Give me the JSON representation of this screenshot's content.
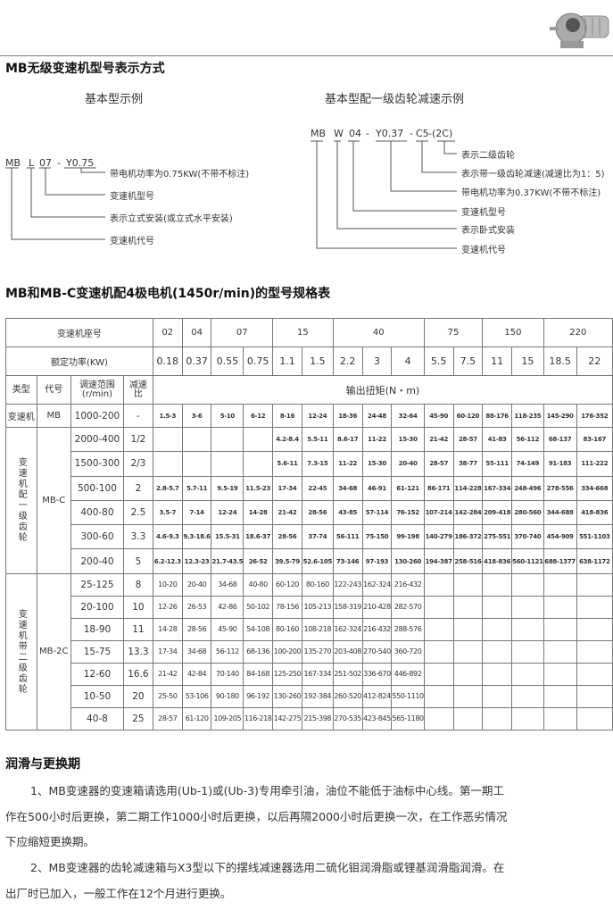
{
  "section1": {
    "title": "MB无级变速机型号表示方式",
    "left": {
      "subtitle": "基本型示例",
      "code": [
        "MB",
        "L",
        "07",
        "-",
        "Y0.75"
      ],
      "labels": [
        "带电机功率为0.75KW(不带不标注)",
        "变速机型号",
        "表示立式安装(或立式水平安装)",
        "变速机代号"
      ]
    },
    "right": {
      "subtitle": "基本型配一级齿轮减速示例",
      "code": [
        "MB",
        "W",
        "04",
        "-",
        "Y0.37",
        "-",
        "C5",
        "-(2C)"
      ],
      "labels": [
        "表示二级齿轮",
        "表示带一级齿轮减速(减速比为1：5)",
        "带电机功率为0.37KW(不带不标注)",
        "变速机型号",
        "表示卧式安装",
        "变速机代号"
      ]
    }
  },
  "table_title": "MB和MB-C变速机配4极电机(1450r/min)的型号规格表",
  "table": {
    "frame_label": "变速机座号",
    "frames": [
      {
        "n": "02",
        "span": 1
      },
      {
        "n": "04",
        "span": 1
      },
      {
        "n": "07",
        "span": 2
      },
      {
        "n": "15",
        "span": 2
      },
      {
        "n": "40",
        "span": 3
      },
      {
        "n": "75",
        "span": 2
      },
      {
        "n": "150",
        "span": 2
      },
      {
        "n": "220",
        "span": 2
      }
    ],
    "power_label": "额定功率(KW)",
    "powers": [
      "0.18",
      "0.37",
      "0.55",
      "0.75",
      "1.1",
      "1.5",
      "2.2",
      "3",
      "4",
      "5.5",
      "7.5",
      "11",
      "15",
      "18.5",
      "22"
    ],
    "col_headers": [
      "类型",
      "代号",
      "调速范围\n(r/min)",
      "减速\n比"
    ],
    "torque_label": "输出扭矩(N・m)",
    "groups": [
      {
        "type": "变速机",
        "code": "MB",
        "rows": [
          {
            "range": "1000-200",
            "ratio": "-",
            "vals": [
              "1.5-3",
              "3-6",
              "5-10",
              "6-12",
              "8-16",
              "12-24",
              "18-36",
              "24-48",
              "32-64",
              "45-90",
              "60-120",
              "88-176",
              "118-235",
              "145-290",
              "176-352"
            ]
          }
        ]
      },
      {
        "type": "变速机配一级齿轮",
        "code": "MB-C",
        "rows": [
          {
            "range": "2000-400",
            "ratio": "1/2",
            "vals": [
              "",
              "",
              "",
              "",
              "4.2-8.4",
              "5.5-11",
              "8.6-17",
              "11-22",
              "15-30",
              "21-42",
              "28-57",
              "41-83",
              "56-112",
              "68-137",
              "83-167"
            ]
          },
          {
            "range": "1500-300",
            "ratio": "2/3",
            "vals": [
              "",
              "",
              "",
              "",
              "5.6-11",
              "7.3-15",
              "11-22",
              "15-30",
              "20-40",
              "28-57",
              "38-77",
              "55-111",
              "74-149",
              "91-183",
              "111-222"
            ]
          },
          {
            "range": "500-100",
            "ratio": "2",
            "vals": [
              "2.8-5.7",
              "5.7-11",
              "9.5-19",
              "11.5-23",
              "17-34",
              "22-45",
              "34-68",
              "46-91",
              "61-121",
              "86-171",
              "114-228",
              "167-334",
              "248-496",
              "278-556",
              "334-668"
            ]
          },
          {
            "range": "400-80",
            "ratio": "2.5",
            "vals": [
              "3.5-7",
              "7-14",
              "12-24",
              "14-28",
              "21-42",
              "28-56",
              "43-85",
              "57-114",
              "76-152",
              "107-214",
              "142-284",
              "209-418",
              "280-560",
              "344-688",
              "418-836"
            ]
          },
          {
            "range": "300-60",
            "ratio": "3.3",
            "vals": [
              "4.6-9.3",
              "9.3-18.6",
              "15.5-31",
              "18.6-37",
              "28-56",
              "37-74",
              "56-111",
              "75-150",
              "99-198",
              "140-279",
              "186-372",
              "275-551",
              "370-740",
              "454-909",
              "551-1103"
            ]
          },
          {
            "range": "200-40",
            "ratio": "5",
            "vals": [
              "6.2-12.3",
              "12.3-23",
              "21.7-43.5",
              "26-52",
              "39.5-79",
              "52.6-105",
              "73-146",
              "97-193",
              "130-260",
              "194-387",
              "258-516",
              "418-836",
              "560-1121",
              "688-1377",
              "638-1172"
            ]
          }
        ]
      },
      {
        "type": "变速机带二级齿轮",
        "code": "MB-2C",
        "rows": [
          {
            "range": "25-125",
            "ratio": "8",
            "vals": [
              "10-20",
              "20-40",
              "34-68",
              "40-80",
              "60-120",
              "80-160",
              "122-243",
              "162-324",
              "216-432",
              "",
              "",
              "",
              "",
              "",
              ""
            ]
          },
          {
            "range": "20-100",
            "ratio": "10",
            "vals": [
              "12-26",
              "26-53",
              "42-86",
              "50-102",
              "78-156",
              "105-213",
              "158-319",
              "210-428",
              "282-570",
              "",
              "",
              "",
              "",
              "",
              ""
            ]
          },
          {
            "range": "18-90",
            "ratio": "11",
            "vals": [
              "14-28",
              "28-56",
              "45-90",
              "54-108",
              "80-160",
              "108-218",
              "162-324",
              "216-432",
              "288-576",
              "",
              "",
              "",
              "",
              "",
              ""
            ]
          },
          {
            "range": "15-75",
            "ratio": "13.3",
            "vals": [
              "17-34",
              "34-68",
              "56-112",
              "68-136",
              "100-200",
              "135-270",
              "203-408",
              "270-540",
              "360-720",
              "",
              "",
              "",
              "",
              "",
              ""
            ]
          },
          {
            "range": "12-60",
            "ratio": "16.6",
            "vals": [
              "21-42",
              "42-84",
              "70-140",
              "84-168",
              "125-250",
              "167-334",
              "251-502",
              "336-670",
              "446-892",
              "",
              "",
              "",
              "",
              "",
              ""
            ]
          },
          {
            "range": "10-50",
            "ratio": "20",
            "vals": [
              "25-50",
              "53-106",
              "90-180",
              "96-192",
              "130-260",
              "192-384",
              "260-520",
              "412-824",
              "550-1110",
              "",
              "",
              "",
              "",
              "",
              ""
            ]
          },
          {
            "range": "40-8",
            "ratio": "25",
            "vals": [
              "28-57",
              "61-120",
              "109-205",
              "116-218",
              "142-275",
              "215-398",
              "270-535",
              "423-845",
              "565-1180",
              "",
              "",
              "",
              "",
              "",
              ""
            ]
          }
        ]
      }
    ]
  },
  "lubrication": {
    "title": "润滑与更换期",
    "lines": [
      "1、MB变速器的变速箱请选用(Ub-1)或(Ub-3)专用牵引油，油位不能低于油标中心线。第一期工",
      "作在500小时后更换，第二期工作1000小时后更换，以后再隔2000小时后更换一次，在工作恶劣情况",
      "下应缩短更换期。",
      "2、MB变速器的齿轮减速箱与X3型以下的摆线减速器选用二硫化钼润滑脂或锂基润滑脂润滑。在",
      "出厂时已加入，一般工作在12个月进行更换。"
    ]
  }
}
